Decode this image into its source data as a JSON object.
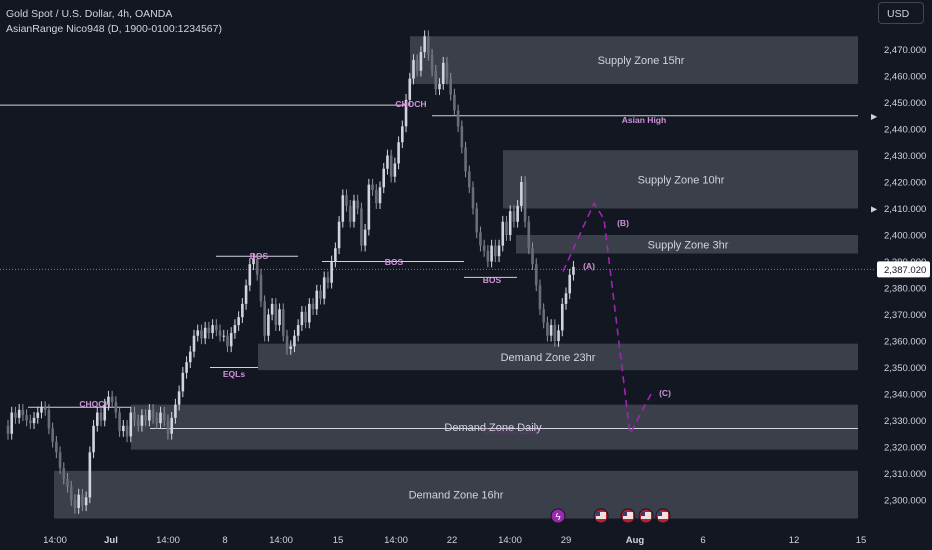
{
  "header": {
    "symbol_line": "Gold Spot / U.S. Dollar, 4h, OANDA",
    "indicator_line": "AsianRange Nico948 (D, 1900-0100:1234567)"
  },
  "currency_button": "USD",
  "colors": {
    "background": "#131722",
    "candle": "#d1d4dc",
    "zone_fill": "#5d606b",
    "annotation": "#9c27b0",
    "label_purple": "#ce93d8",
    "text": "#d1d4dc",
    "price_tag_bg": "#ffffff"
  },
  "current_price": "2,387.020",
  "chart_data": {
    "type": "candlestick",
    "y_axis": {
      "range": [
        2290,
        2480
      ],
      "ticks": [
        "2,300.000",
        "2,310.000",
        "2,320.000",
        "2,330.000",
        "2,340.000",
        "2,350.000",
        "2,360.000",
        "2,370.000",
        "2,380.000",
        "2,390.000",
        "2,400.000",
        "2,410.000",
        "2,420.000",
        "2,430.000",
        "2,440.000",
        "2,450.000",
        "2,460.000",
        "2,470.000"
      ]
    },
    "x_axis": {
      "ticks": [
        "14:00",
        "Jul",
        "14:00",
        "8",
        "14:00",
        "15",
        "14:00",
        "22",
        "14:00",
        "29",
        "Aug",
        "6",
        "12",
        "15"
      ],
      "bold": [
        "Jul",
        "Aug"
      ]
    },
    "closes": [
      2325,
      2333,
      2331,
      2334,
      2332,
      2330,
      2329,
      2331,
      2333,
      2335,
      2334,
      2327,
      2322,
      2318,
      2312,
      2308,
      2305,
      2300,
      2297,
      2302,
      2298,
      2301,
      2318,
      2328,
      2333,
      2330,
      2336,
      2339,
      2337,
      2333,
      2326,
      2328,
      2324,
      2333,
      2330,
      2328,
      2332,
      2330,
      2334,
      2331,
      2329,
      2333,
      2330,
      2325,
      2331,
      2336,
      2341,
      2348,
      2352,
      2356,
      2362,
      2364,
      2361,
      2365,
      2363,
      2366,
      2364,
      2362,
      2362,
      2358,
      2363,
      2366,
      2369,
      2374,
      2381,
      2389,
      2391,
      2385,
      2375,
      2362,
      2370,
      2374,
      2366,
      2372,
      2362,
      2357,
      2358,
      2362,
      2366,
      2371,
      2367,
      2374,
      2372,
      2379,
      2376,
      2384,
      2382,
      2390,
      2395,
      2405,
      2415,
      2411,
      2405,
      2413,
      2410,
      2396,
      2402,
      2419,
      2417,
      2412,
      2418,
      2425,
      2430,
      2422,
      2427,
      2435,
      2441,
      2451,
      2459,
      2466,
      2462,
      2469,
      2475,
      2468,
      2462,
      2455,
      2457,
      2465,
      2459,
      2453,
      2447,
      2441,
      2433,
      2424,
      2418,
      2410,
      2401,
      2396,
      2394,
      2390,
      2396,
      2392,
      2396,
      2405,
      2400,
      2409,
      2405,
      2411,
      2420,
      2405,
      2395,
      2389,
      2381,
      2372,
      2367,
      2362,
      2366,
      2360,
      2364,
      2374,
      2378,
      2385,
      2388
    ],
    "opens": [
      2328
    ],
    "annotations": {
      "choch_top": "CHOCH",
      "choch_left": "CHOCH",
      "bos_1": "BOS",
      "bos_2": "BOS",
      "bos_3": "BOS",
      "eqls": "EQLs",
      "asian_high": "Asian High",
      "wave_a": "(A)",
      "wave_b": "(B)",
      "wave_c": "(C)",
      "faded_label": "Demand Zone"
    },
    "zones": [
      {
        "label": "Supply Zone 15hr",
        "top": 2475,
        "bottom": 2457
      },
      {
        "label": "Supply Zone 10hr",
        "top": 2432,
        "bottom": 2410
      },
      {
        "label": "Supply Zone 3hr",
        "top": 2400,
        "bottom": 2393
      },
      {
        "label": "Demand Zone 23hr",
        "top": 2359,
        "bottom": 2349
      },
      {
        "label": "Demand Zone Daily",
        "top": 2336,
        "bottom": 2319
      },
      {
        "label": "Demand Zone 16hr",
        "top": 2311,
        "bottom": 2293
      }
    ],
    "levels": {
      "asian_high": 2445,
      "old_high": 2449,
      "bos_1": 2392,
      "bos_2": 2390,
      "bos_3": 2384,
      "eqls": 2350,
      "choch_left": 2335,
      "daily_line": 2327,
      "current": 2387.02
    }
  }
}
